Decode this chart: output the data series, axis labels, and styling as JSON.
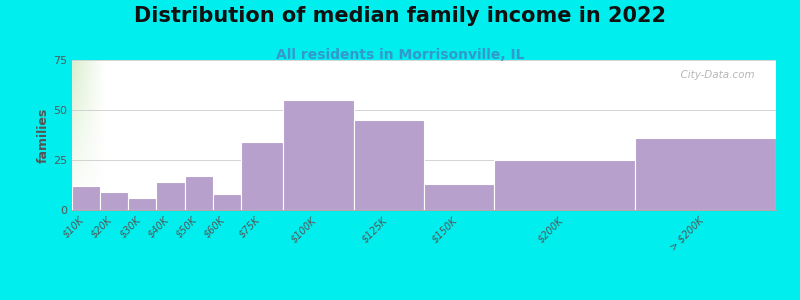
{
  "title": "Distribution of median family income in 2022",
  "subtitle": "All residents in Morrisonville, IL",
  "ylabel": "families",
  "background_outer": "#00EEEE",
  "bar_color": "#b8a0cc",
  "bar_edgecolor": "#ffffff",
  "categories": [
    "$10K",
    "$20K",
    "$30K",
    "$40K",
    "$50K",
    "$60K",
    "$75K",
    "$100K",
    "$125K",
    "$150K",
    "$200K",
    "> $200K"
  ],
  "values": [
    12,
    9,
    6,
    14,
    17,
    8,
    34,
    55,
    45,
    13,
    25,
    36
  ],
  "edges": [
    0,
    10,
    20,
    30,
    40,
    50,
    60,
    75,
    100,
    125,
    150,
    200,
    250
  ],
  "ylim": [
    0,
    75
  ],
  "yticks": [
    0,
    25,
    50,
    75
  ],
  "title_fontsize": 15,
  "subtitle_fontsize": 10,
  "ylabel_fontsize": 9,
  "watermark": "  City-Data.com"
}
